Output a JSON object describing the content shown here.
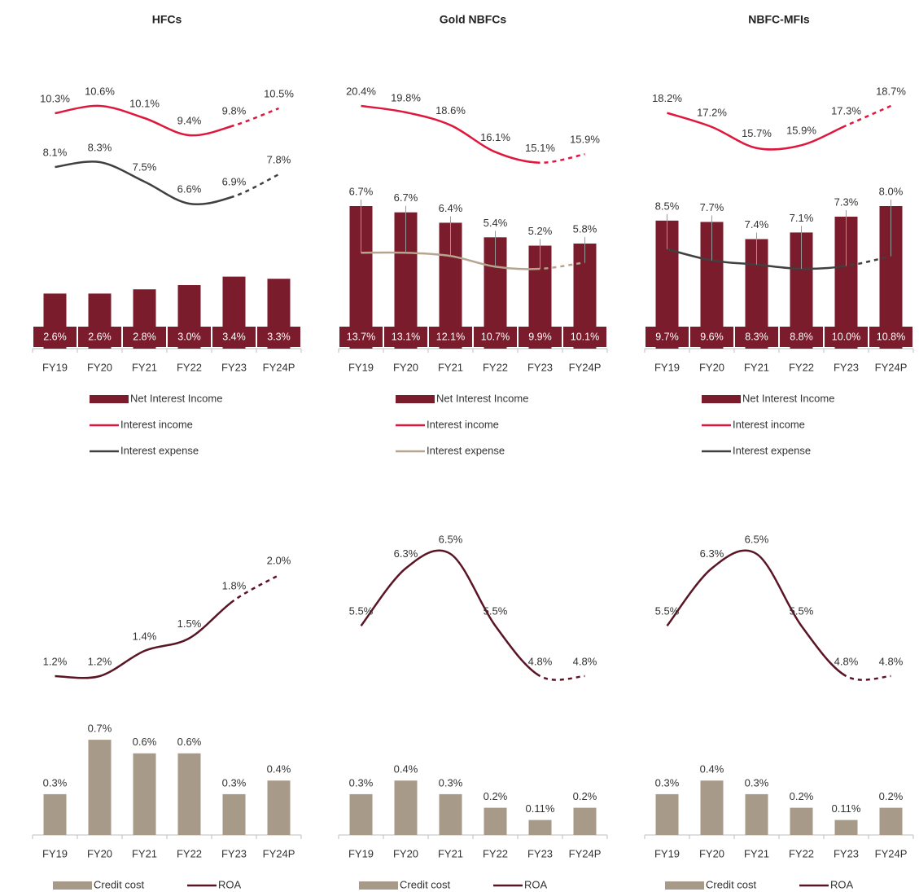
{
  "chart_data": [
    {
      "type": "combo",
      "title": "HFCs",
      "categories": [
        "FY19",
        "FY20",
        "FY21",
        "FY22",
        "FY23",
        "FY24P"
      ],
      "series": [
        {
          "name": "Net Interest Income",
          "type": "bar",
          "color": "#7b1c2c",
          "value_label_position": "inside",
          "values": [
            2.6,
            2.6,
            2.8,
            3.0,
            3.4,
            3.3
          ],
          "value_labels": [
            "2.6%",
            "2.6%",
            "2.8%",
            "3.0%",
            "3.4%",
            "3.3%"
          ]
        },
        {
          "name": "Interest income",
          "type": "line",
          "color": "#e0173c",
          "values": [
            10.3,
            10.6,
            10.1,
            9.4,
            9.8,
            10.5
          ],
          "value_labels": [
            "10.3%",
            "10.6%",
            "10.1%",
            "9.4%",
            "9.8%",
            "10.5%"
          ]
        },
        {
          "name": "Interest expense",
          "type": "line",
          "color": "#404040",
          "values": [
            8.1,
            8.3,
            7.5,
            6.6,
            6.9,
            7.8
          ],
          "value_labels": [
            "8.1%",
            "8.3%",
            "7.5%",
            "6.6%",
            "6.9%",
            "7.8%"
          ]
        }
      ]
    },
    {
      "type": "combo",
      "title": "Gold NBFCs",
      "categories": [
        "FY19",
        "FY20",
        "FY21",
        "FY22",
        "FY23",
        "FY24P"
      ],
      "series": [
        {
          "name": "Net Interest Income",
          "type": "bar",
          "color": "#7b1c2c",
          "value_label_position": "inside",
          "values": [
            13.7,
            13.1,
            12.1,
            10.7,
            9.9,
            10.1
          ],
          "value_labels": [
            "13.7%",
            "13.1%",
            "12.1%",
            "10.7%",
            "9.9%",
            "10.1%"
          ]
        },
        {
          "name": "Interest income",
          "type": "line",
          "color": "#e0173c",
          "values": [
            20.4,
            19.8,
            18.6,
            16.1,
            15.1,
            15.9
          ],
          "value_labels": [
            "20.4%",
            "19.8%",
            "18.6%",
            "16.1%",
            "15.1%",
            "15.9%"
          ]
        },
        {
          "name": "Interest expense",
          "type": "line",
          "color": "#b5a48e",
          "values": [
            6.7,
            6.7,
            6.4,
            5.4,
            5.2,
            5.8
          ],
          "value_labels": [
            "6.7%",
            "6.7%",
            "6.4%",
            "5.4%",
            "5.2%",
            "5.8%"
          ]
        }
      ]
    },
    {
      "type": "combo",
      "title": "NBFC-MFIs",
      "categories": [
        "FY19",
        "FY20",
        "FY21",
        "FY22",
        "FY23",
        "FY24P"
      ],
      "series": [
        {
          "name": "Net Interest Income",
          "type": "bar",
          "color": "#7b1c2c",
          "value_label_position": "inside",
          "values": [
            9.7,
            9.6,
            8.3,
            8.8,
            10.0,
            10.8
          ],
          "value_labels": [
            "9.7%",
            "9.6%",
            "8.3%",
            "8.8%",
            "10.0%",
            "10.8%"
          ]
        },
        {
          "name": "Interest income",
          "type": "line",
          "color": "#e0173c",
          "values": [
            18.2,
            17.2,
            15.7,
            15.9,
            17.3,
            18.7
          ],
          "value_labels": [
            "18.2%",
            "17.2%",
            "15.7%",
            "15.9%",
            "17.3%",
            "18.7%"
          ]
        },
        {
          "name": "Interest expense",
          "type": "line",
          "color": "#404040",
          "values": [
            8.5,
            7.7,
            7.4,
            7.1,
            7.3,
            8.0
          ],
          "value_labels": [
            "8.5%",
            "7.7%",
            "7.4%",
            "7.1%",
            "7.3%",
            "8.0%"
          ]
        }
      ]
    },
    {
      "type": "combo",
      "categories": [
        "FY19",
        "FY20",
        "FY21",
        "FY22",
        "FY23",
        "FY24P"
      ],
      "series": [
        {
          "name": "Credit cost",
          "type": "bar",
          "color": "#a89a88",
          "value_label_position": "above",
          "values": [
            0.3,
            0.7,
            0.6,
            0.6,
            0.3,
            0.4
          ],
          "value_labels": [
            "0.3%",
            "0.7%",
            "0.6%",
            "0.6%",
            "0.3%",
            "0.4%"
          ]
        },
        {
          "name": "ROA",
          "type": "line",
          "color": "#5a1525",
          "values": [
            1.2,
            1.2,
            1.4,
            1.5,
            1.8,
            2.0
          ],
          "value_labels": [
            "1.2%",
            "1.2%",
            "1.4%",
            "1.5%",
            "1.8%",
            "2.0%"
          ]
        }
      ]
    },
    {
      "type": "combo",
      "categories": [
        "FY19",
        "FY20",
        "FY21",
        "FY22",
        "FY23",
        "FY24P"
      ],
      "series": [
        {
          "name": "Credit cost",
          "type": "bar",
          "color": "#a89a88",
          "value_label_position": "above",
          "values": [
            0.3,
            0.4,
            0.3,
            0.2,
            0.11,
            0.2
          ],
          "value_labels": [
            "0.3%",
            "0.4%",
            "0.3%",
            "0.2%",
            "0.11%",
            "0.2%"
          ]
        },
        {
          "name": "ROA",
          "type": "line",
          "color": "#5a1525",
          "values": [
            5.5,
            6.3,
            6.5,
            5.5,
            4.8,
            4.8
          ],
          "value_labels": [
            "5.5%",
            "6.3%",
            "6.5%",
            "5.5%",
            "4.8%",
            "4.8%"
          ]
        }
      ]
    },
    {
      "type": "combo",
      "categories": [
        "FY19",
        "FY20",
        "FY21",
        "FY22",
        "FY23",
        "FY24P"
      ],
      "series": [
        {
          "name": "Credit cost",
          "type": "bar",
          "color": "#a89a88",
          "value_label_position": "above",
          "values": [
            0.3,
            0.4,
            0.3,
            0.2,
            0.11,
            0.2
          ],
          "value_labels": [
            "0.3%",
            "0.4%",
            "0.3%",
            "0.2%",
            "0.11%",
            "0.2%"
          ]
        },
        {
          "name": "ROA",
          "type": "line",
          "color": "#5a1525",
          "values": [
            5.5,
            6.3,
            6.5,
            5.5,
            4.8,
            4.8
          ],
          "value_labels": [
            "5.5%",
            "6.3%",
            "6.5%",
            "5.5%",
            "4.8%",
            "4.8%"
          ]
        }
      ]
    }
  ]
}
